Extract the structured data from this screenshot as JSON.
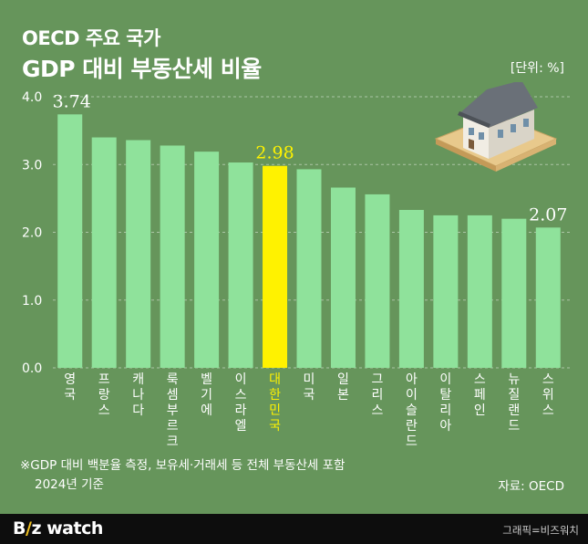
{
  "header": {
    "title_line1": "OECD 주요 국가",
    "title_line2": "GDP 대비 부동산세 비율",
    "unit": "[단위: %]"
  },
  "chart_data": {
    "type": "bar",
    "categories": [
      "영국",
      "프랑스",
      "캐나다",
      "룩셈부르크",
      "벨기에",
      "이스라엘",
      "대한민국",
      "미국",
      "일본",
      "그리스",
      "아이슬란드",
      "이탈리아",
      "스페인",
      "뉴질랜드",
      "스위스"
    ],
    "values": [
      3.74,
      3.4,
      3.36,
      3.28,
      3.19,
      3.03,
      2.98,
      2.93,
      2.66,
      2.56,
      2.33,
      2.25,
      2.25,
      2.2,
      2.07
    ],
    "value_labels": [
      {
        "index": 0,
        "text": "3.74"
      },
      {
        "index": 6,
        "text": "2.98"
      },
      {
        "index": 14,
        "text": "2.07"
      }
    ],
    "highlight_index": 6,
    "y_ticks": [
      "0.0",
      "1.0",
      "2.0",
      "3.0",
      "4.0"
    ],
    "ylim": [
      0,
      4.0
    ],
    "grid": "dashed horizontal",
    "colors": {
      "bar": "#8fe29b",
      "highlight": "#fff200",
      "highlight_label": "#fff200",
      "background": "#66955b"
    }
  },
  "notes": {
    "line1": "※GDP 대비 백분율 측정, 보유세·거래세 등 전체 부동산세 포함",
    "line2": "2024년 기준"
  },
  "source": "자료: OECD",
  "footer": {
    "logo_prefix": "B",
    "logo_accent": "/",
    "logo_rest": "z watch",
    "credit": "그래픽=비즈워치"
  },
  "illustration": {
    "icon": "house-icon"
  }
}
